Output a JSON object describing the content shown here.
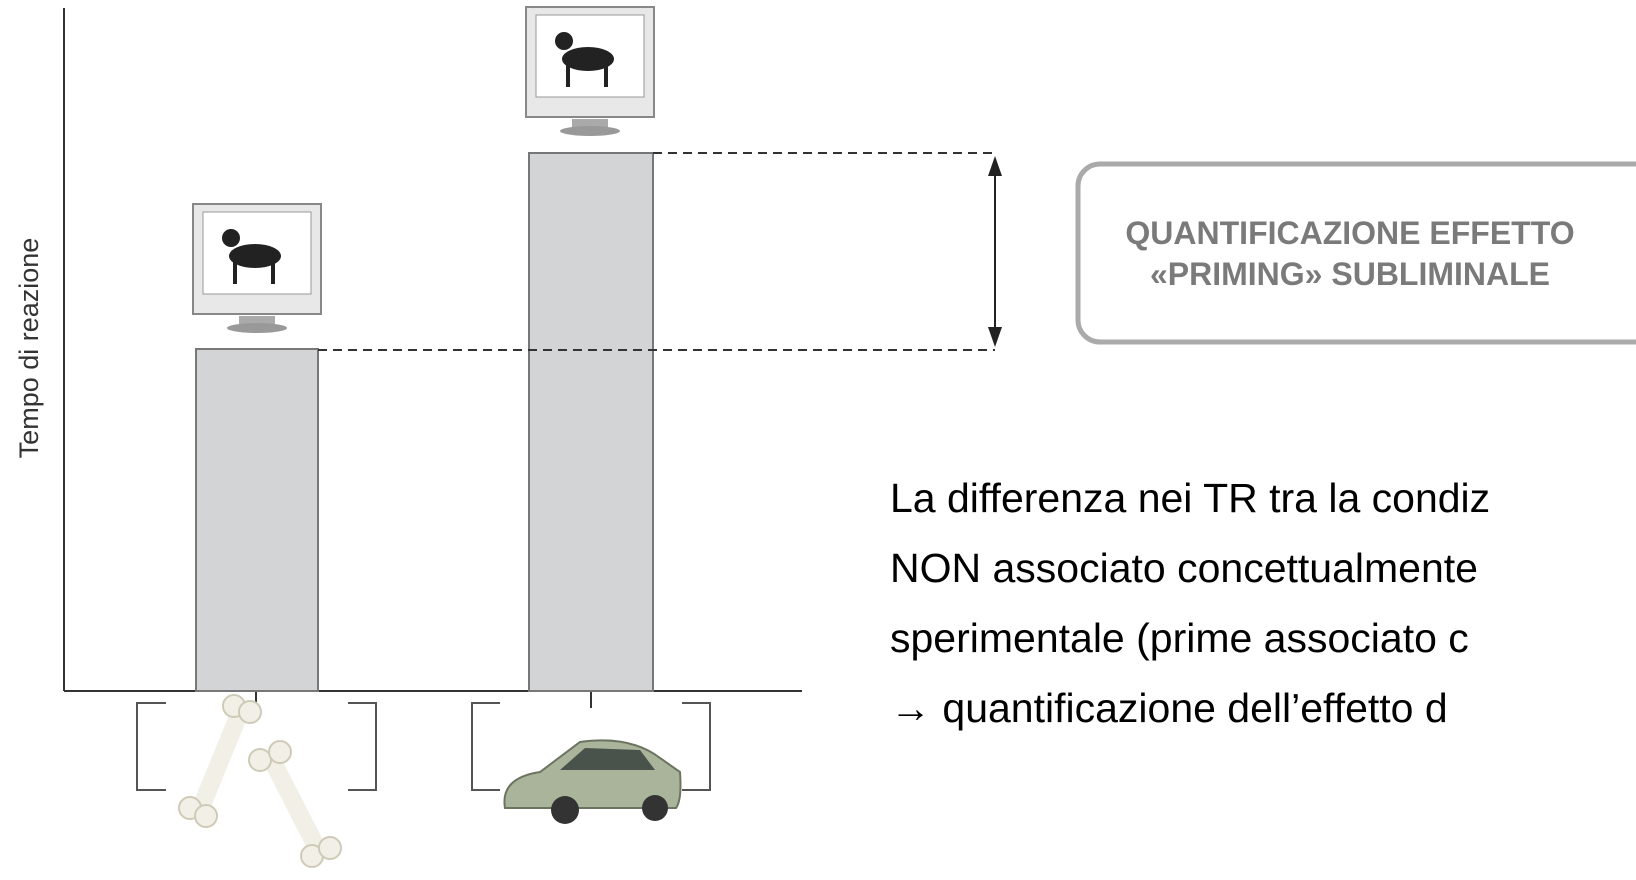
{
  "axis_label": "Tempo di reazione",
  "callout": [
    "QUANTIFICAZIONE EFFETTO",
    "«PRIMING» SUBLIMINALE"
  ],
  "body": [
    "La differenza nei TR tra la condiz",
    "NON associato concettualmente",
    "sperimentale (prime associato c",
    "→ quantificazione dell’effetto d"
  ]
}
